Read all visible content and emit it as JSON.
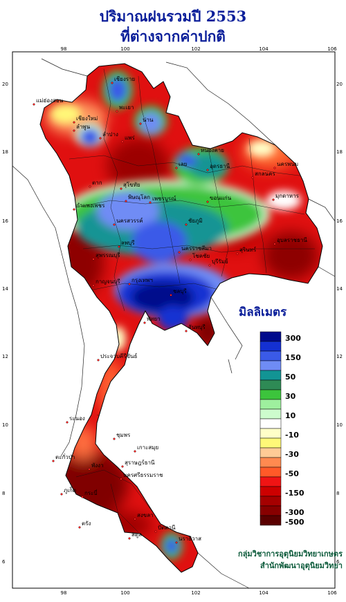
{
  "title": {
    "line1": "ปริมาณฝนรวมปี  2553",
    "line2": "ที่ต่างจากค่าปกติ"
  },
  "axes": {
    "lon_ticks": [
      "98",
      "100",
      "102",
      "104",
      "106"
    ],
    "lat_ticks": [
      "20",
      "18",
      "16",
      "14",
      "12",
      "10",
      "8",
      "6"
    ]
  },
  "legend": {
    "title": "มิลลิเมตร",
    "entries": [
      {
        "color": "#000a8c",
        "label": "300"
      },
      {
        "color": "#1430d2",
        "label": ""
      },
      {
        "color": "#3a5ae8",
        "label": "150"
      },
      {
        "color": "#6f8cf5",
        "label": ""
      },
      {
        "color": "#129494",
        "label": "50"
      },
      {
        "color": "#2e8a55",
        "label": ""
      },
      {
        "color": "#3cc43c",
        "label": "30"
      },
      {
        "color": "#9ef09e",
        "label": ""
      },
      {
        "color": "#cdfccd",
        "label": "10"
      },
      {
        "color": "#ffffff",
        "label": ""
      },
      {
        "color": "#ffffc8",
        "label": "-10"
      },
      {
        "color": "#fff878",
        "label": ""
      },
      {
        "color": "#ffcb96",
        "label": "-30"
      },
      {
        "color": "#ff8a50",
        "label": ""
      },
      {
        "color": "#ff5a28",
        "label": "-50"
      },
      {
        "color": "#f01414",
        "label": ""
      },
      {
        "color": "#cd0000",
        "label": "-150"
      },
      {
        "color": "#a50000",
        "label": ""
      },
      {
        "color": "#870000",
        "label": "-300"
      },
      {
        "color": "#5a0000",
        "label": "-500"
      }
    ]
  },
  "places": [
    "เชียงราย",
    "แม่ฮ่องสอน",
    "เชียงใหม่",
    "ลำพูน",
    "พะเยา",
    "น่าน",
    "ลำปาง",
    "แพร่",
    "หนองคาย",
    "นครพนม",
    "เลย",
    "อุดรธานี",
    "สกลนคร",
    "ตาก",
    "สุโขทัย",
    "พิษณุโลก",
    "มุกดาหาร",
    "กำแพงเพชร",
    "เพชรบูรณ์",
    "ขอนแก่น",
    "นครสวรรค์",
    "ชัยภูมิ",
    "อุบลราชธานี",
    "ลพบุรี",
    "นครราชสีมา",
    "สุรินทร์",
    "สุพรรณบุรี",
    "โชคชัย",
    "บุรีรัมย์",
    "กาญจนบุรี",
    "กรุงเทพฯ",
    "ชลบุรี",
    "พัทยา",
    "จันทบุรี",
    "ประจวบคีรีขันธ์",
    "ระนอง",
    "ชุมพร",
    "เกาะสมุย",
    "สุราษฎร์ธานี",
    "ตะกั่วป่า",
    "พังงา",
    "นครศรีธรรมราช",
    "ภูเก็ต",
    "กระบี่",
    "ตรัง",
    "สงขลา",
    "ปัตตานี",
    "สตูล",
    "นราธิวาส"
  ],
  "credit": {
    "line1": "กลุ่มวิชาการอุตุนิยมวิทยาเกษตร",
    "line2": "สำนักพัฒนาอุตุนิยมวิทยา"
  }
}
